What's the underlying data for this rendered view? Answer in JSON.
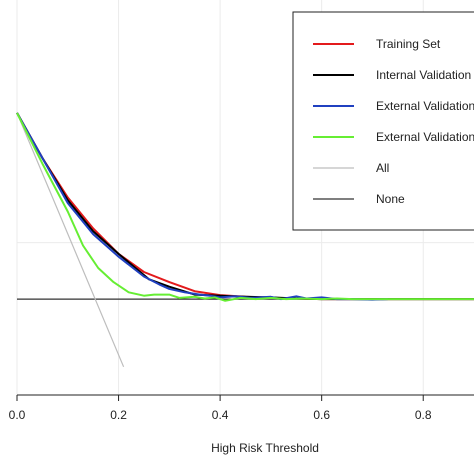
{
  "chart_data": {
    "type": "line",
    "title": "",
    "xlabel": "High Risk Threshold",
    "ylabel": "",
    "xlim": [
      0.0,
      0.9
    ],
    "ylim": [
      -0.17,
      0.53
    ],
    "x_ticks": [
      0.0,
      0.2,
      0.4,
      0.6,
      0.8
    ],
    "x_tick_labels": [
      "0.0",
      "0.2",
      "0.4",
      "0.6",
      "0.8"
    ],
    "y_ticks": [
      0.1,
      0.0
    ],
    "grid": true,
    "legend_position": "top-right",
    "series": [
      {
        "name": "Training Set",
        "color": "#e31a1c",
        "x": [
          0.0,
          0.05,
          0.1,
          0.15,
          0.2,
          0.25,
          0.3,
          0.35,
          0.4,
          0.45,
          0.5,
          0.55,
          0.6,
          0.65,
          0.7,
          0.8,
          0.9
        ],
        "y": [
          0.33,
          0.25,
          0.18,
          0.125,
          0.08,
          0.048,
          0.03,
          0.014,
          0.007,
          0.004,
          0.002,
          0.001,
          0.0,
          0.0,
          0.0,
          0.0,
          0.0
        ]
      },
      {
        "name": "Internal Validation",
        "color": "#000000",
        "x": [
          0.0,
          0.05,
          0.1,
          0.15,
          0.2,
          0.24,
          0.26,
          0.3,
          0.35,
          0.4,
          0.45,
          0.5,
          0.55,
          0.6,
          0.65,
          0.7,
          0.8,
          0.9
        ],
        "y": [
          0.33,
          0.25,
          0.175,
          0.12,
          0.08,
          0.05,
          0.035,
          0.022,
          0.008,
          0.006,
          0.004,
          0.003,
          0.001,
          0.0,
          0.0,
          0.0,
          0.0,
          0.0
        ]
      },
      {
        "name": "External Validation",
        "color": "#2040c0",
        "x": [
          0.0,
          0.05,
          0.1,
          0.15,
          0.2,
          0.25,
          0.28,
          0.3,
          0.33,
          0.36,
          0.38,
          0.4,
          0.43,
          0.46,
          0.5,
          0.52,
          0.55,
          0.57,
          0.6,
          0.63,
          0.66,
          0.7,
          0.73
        ],
        "y": [
          0.33,
          0.25,
          0.17,
          0.115,
          0.075,
          0.04,
          0.026,
          0.018,
          0.012,
          0.008,
          0.006,
          0.003,
          0.005,
          0.002,
          0.004,
          0.0,
          0.005,
          0.001,
          0.003,
          0.0,
          0.0,
          -0.001,
          0.0
        ]
      },
      {
        "name": "External Validation",
        "color": "#66ee33",
        "x": [
          0.0,
          0.05,
          0.1,
          0.13,
          0.16,
          0.19,
          0.22,
          0.25,
          0.27,
          0.3,
          0.32,
          0.35,
          0.37,
          0.39,
          0.41,
          0.44,
          0.47,
          0.5,
          0.53,
          0.56,
          0.6,
          0.63,
          0.66,
          0.7,
          0.75,
          0.8,
          0.85,
          0.9
        ],
        "y": [
          0.33,
          0.24,
          0.155,
          0.095,
          0.055,
          0.03,
          0.012,
          0.006,
          0.008,
          0.008,
          0.002,
          0.004,
          0.001,
          0.003,
          -0.003,
          0.002,
          0.0,
          0.002,
          0.0,
          0.001,
          0.0,
          0.001,
          0.0,
          0.0,
          0.0,
          0.0,
          0.0,
          0.0
        ]
      },
      {
        "name": "All",
        "color": "#bdbdbd",
        "x": [
          0.0,
          0.21
        ],
        "y": [
          0.33,
          -0.12
        ]
      },
      {
        "name": "None",
        "color": "#333333",
        "x": [
          0.0,
          0.9
        ],
        "y": [
          0.0,
          0.0
        ]
      }
    ]
  }
}
